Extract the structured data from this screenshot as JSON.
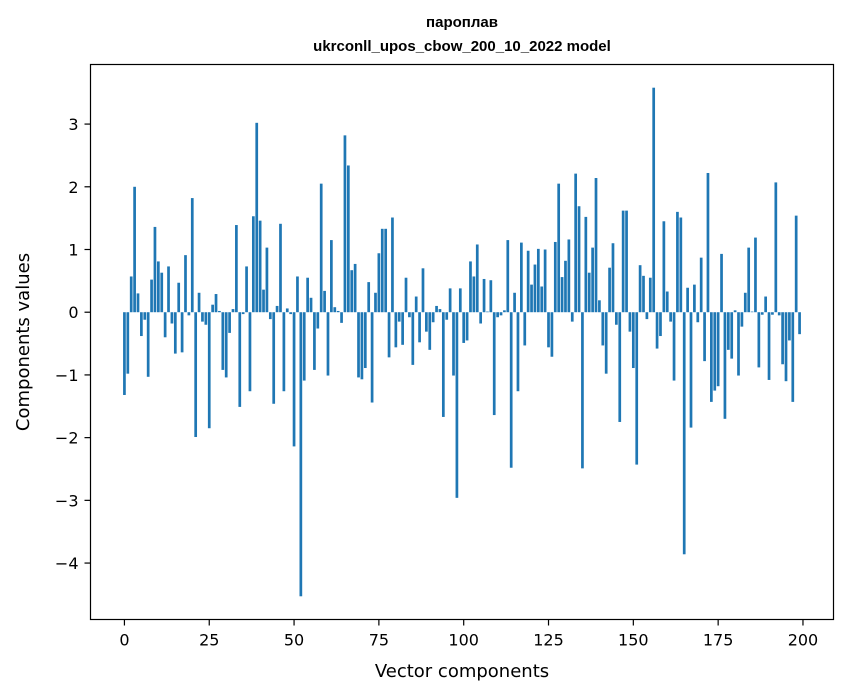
{
  "chart_data": {
    "type": "bar",
    "title": "пароплав",
    "subtitle": "ukrconll_upos_cbow_200_10_2022 model",
    "xlabel": "Vector components",
    "ylabel": "Components values",
    "xlim": [
      -10,
      209
    ],
    "ylim": [
      -4.9,
      3.95
    ],
    "xticks": [
      0,
      25,
      50,
      75,
      100,
      125,
      150,
      175,
      200
    ],
    "yticks": [
      -4,
      -3,
      -2,
      -1,
      0,
      1,
      2,
      3
    ],
    "xtick_labels": [
      "0",
      "25",
      "50",
      "75",
      "100",
      "125",
      "150",
      "175",
      "200"
    ],
    "ytick_labels": [
      "−4",
      "−3",
      "−2",
      "−1",
      "0",
      "1",
      "2",
      "3"
    ],
    "bar_color": "#1f77b4",
    "grid": false,
    "values": [
      -1.32,
      -0.98,
      0.57,
      2.0,
      0.3,
      -0.38,
      -0.12,
      -1.03,
      0.52,
      1.36,
      0.81,
      0.63,
      -0.4,
      0.73,
      -0.18,
      -0.66,
      0.47,
      -0.64,
      0.91,
      -0.05,
      1.82,
      -1.99,
      0.31,
      -0.15,
      -0.2,
      -1.85,
      0.12,
      0.29,
      0.02,
      -0.92,
      -1.04,
      -0.33,
      0.05,
      1.39,
      -1.51,
      -0.03,
      0.73,
      -1.26,
      1.53,
      3.02,
      1.46,
      0.36,
      1.03,
      -0.11,
      -1.46,
      0.1,
      1.41,
      -1.26,
      0.06,
      -0.03,
      -2.14,
      0.57,
      -4.53,
      -1.09,
      0.55,
      0.23,
      -0.92,
      -0.26,
      2.05,
      0.34,
      -1.01,
      1.15,
      0.08,
      0.02,
      -0.17,
      2.82,
      2.34,
      0.67,
      0.77,
      -1.04,
      -1.07,
      -0.89,
      0.48,
      -1.44,
      0.31,
      0.94,
      1.33,
      1.33,
      -0.72,
      1.51,
      -0.56,
      -0.15,
      -0.52,
      0.55,
      -0.08,
      -0.84,
      0.25,
      -0.48,
      0.7,
      -0.31,
      -0.6,
      -0.16,
      0.1,
      0.05,
      -1.67,
      -0.12,
      0.38,
      -1.01,
      -2.96,
      0.38,
      -0.49,
      -0.45,
      0.81,
      0.57,
      1.08,
      -0.18,
      0.53,
      0.01,
      0.51,
      -1.64,
      -0.08,
      -0.05,
      0.03,
      1.15,
      -2.48,
      0.31,
      -1.26,
      1.11,
      -0.53,
      0.98,
      0.44,
      0.76,
      1.01,
      0.41,
      1.0,
      -0.56,
      -0.71,
      1.12,
      2.05,
      0.56,
      0.82,
      1.16,
      -0.15,
      2.21,
      1.69,
      -2.49,
      1.52,
      0.63,
      1.03,
      2.14,
      0.19,
      -0.53,
      -0.98,
      0.71,
      1.1,
      -0.2,
      -1.75,
      1.62,
      1.62,
      -0.31,
      -0.89,
      -2.43,
      0.75,
      0.58,
      -0.11,
      0.55,
      3.58,
      -0.58,
      -0.38,
      1.45,
      0.33,
      -0.15,
      -1.09,
      1.6,
      1.51,
      -3.86,
      0.39,
      -1.84,
      0.44,
      -0.16,
      0.87,
      -0.78,
      2.22,
      -1.43,
      -1.25,
      -1.18,
      0.93,
      -1.7,
      -0.6,
      -0.74,
      0.03,
      -1.01,
      -0.23,
      0.31,
      1.03,
      0.01,
      1.19,
      -0.88,
      -0.04,
      0.25,
      -1.08,
      -0.04,
      2.07,
      -0.05,
      -0.83,
      -1.1,
      -0.45,
      -1.43,
      1.54,
      -0.35
    ]
  }
}
